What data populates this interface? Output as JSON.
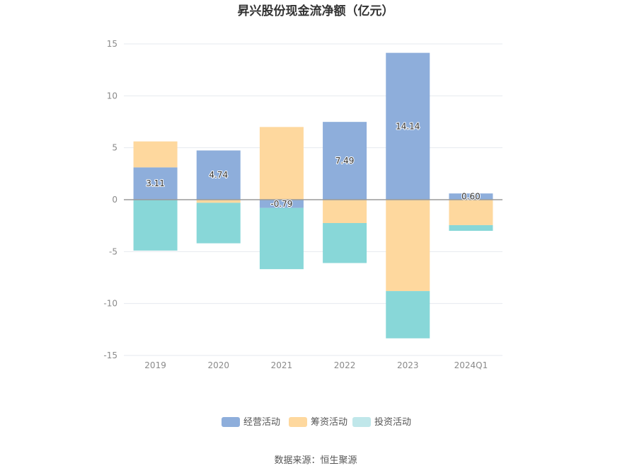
{
  "chart_data": {
    "type": "bar",
    "stacked": true,
    "title": "昇兴股份现金流净额（亿元）",
    "xlabel": "",
    "ylabel": "",
    "categories": [
      "2019",
      "2020",
      "2021",
      "2022",
      "2023",
      "2024Q1"
    ],
    "series": [
      {
        "name": "经营活动",
        "color": "#8eaedb",
        "values": [
          3.11,
          4.74,
          -0.79,
          7.49,
          14.14,
          0.6
        ],
        "labels": [
          "3.11",
          "4.74",
          "-0.79",
          "7.49",
          "14.14",
          "0.60"
        ]
      },
      {
        "name": "筹资活动",
        "color": "#fed89e",
        "values": [
          2.5,
          -0.3,
          7.0,
          -2.25,
          -8.8,
          -2.45
        ]
      },
      {
        "name": "投资活动",
        "color": "#88d7d8",
        "values": [
          -4.9,
          -3.9,
          -5.9,
          -3.85,
          -4.55,
          -0.55
        ]
      }
    ],
    "ylim": [
      -15,
      15
    ],
    "yticks": [
      15,
      10,
      5,
      0,
      -5,
      -10,
      -15
    ],
    "grid": true,
    "legend_position": "bottom",
    "legend_colors": [
      "#8eaedb",
      "#fed89e",
      "#c0e7ea"
    ],
    "source": "数据来源：恒生聚源"
  }
}
